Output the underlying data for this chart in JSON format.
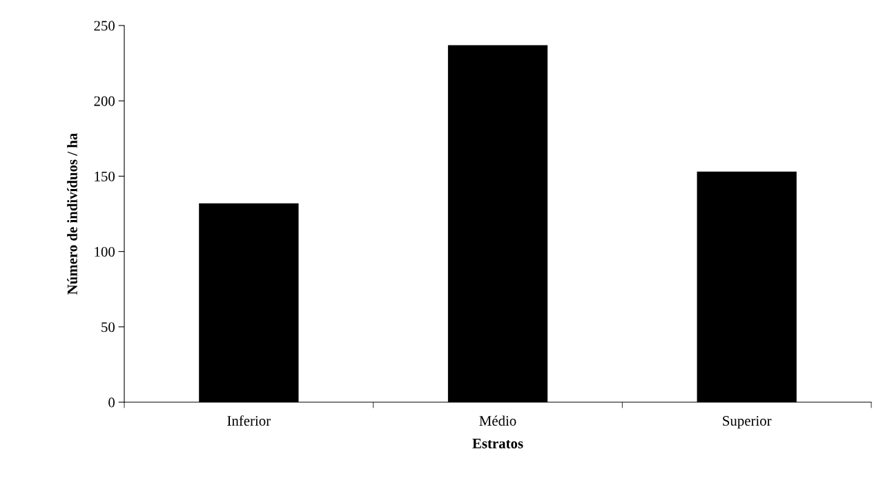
{
  "chart_data": {
    "type": "bar",
    "xlabel": "Estratos",
    "ylabel": "Número de indivíduos / ha",
    "categories": [
      "Inferior",
      "Médio",
      "Superior"
    ],
    "values": [
      132,
      237,
      153
    ],
    "color": "#000000",
    "ylim": [
      0,
      250
    ],
    "yticks": [
      0,
      50,
      100,
      150,
      200,
      250
    ],
    "grid": false,
    "legend": false
  }
}
